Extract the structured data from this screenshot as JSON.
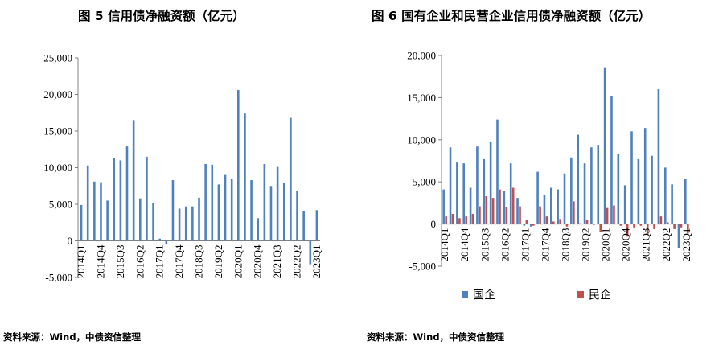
{
  "chart_data": [
    {
      "type": "bar",
      "title": "图 5  信用债净融资额（亿元）",
      "source": "资料来源：Wind，中债资信整理",
      "ylim": [
        -5000,
        25000
      ],
      "yticks": [
        -5000,
        0,
        5000,
        10000,
        15000,
        20000,
        25000
      ],
      "ytick_labels": [
        "-5,000",
        "0",
        "5,000",
        "10,000",
        "15,000",
        "20,000",
        "25,000"
      ],
      "categories": [
        "2014Q1",
        "2014Q2",
        "2014Q3",
        "2014Q4",
        "2015Q1",
        "2015Q2",
        "2015Q3",
        "2015Q4",
        "2016Q1",
        "2016Q2",
        "2016Q3",
        "2016Q4",
        "2017Q1",
        "2017Q2",
        "2017Q3",
        "2017Q4",
        "2018Q1",
        "2018Q2",
        "2018Q3",
        "2018Q4",
        "2019Q1",
        "2019Q2",
        "2019Q3",
        "2019Q4",
        "2020Q1",
        "2020Q2",
        "2020Q3",
        "2020Q4",
        "2021Q1",
        "2021Q2",
        "2021Q3",
        "2021Q4",
        "2022Q1",
        "2022Q2",
        "2022Q3",
        "2022Q4",
        "2023Q1"
      ],
      "xtick_labels": [
        "2014Q1",
        "",
        "",
        "2014Q4",
        "",
        "",
        "2015Q3",
        "",
        "",
        "2016Q2",
        "",
        "",
        "2017Q1",
        "",
        "",
        "2017Q4",
        "",
        "",
        "2018Q3",
        "",
        "",
        "2019Q2",
        "",
        "",
        "2020Q1",
        "",
        "",
        "2020Q4",
        "",
        "",
        "2021Q3",
        "",
        "",
        "2022Q2",
        "",
        "",
        "2023Q1"
      ],
      "series": [
        {
          "name": "信用债净融资额",
          "color": "#4F81BD",
          "values": [
            4900,
            10300,
            8100,
            8000,
            5500,
            11300,
            11000,
            12900,
            16500,
            5800,
            11500,
            5200,
            300,
            -500,
            8300,
            4400,
            4700,
            4700,
            5900,
            10500,
            10400,
            7700,
            9000,
            8500,
            20600,
            17400,
            8300,
            3100,
            10500,
            7500,
            10100,
            7900,
            16800,
            6800,
            4100,
            -3200,
            4200
          ]
        }
      ]
    },
    {
      "type": "bar",
      "title": "图 6  国有企业和民营企业信用债净融资额（亿元）",
      "source": "资料来源：Wind，中债资信整理",
      "ylim": [
        -5000,
        20000
      ],
      "yticks": [
        -5000,
        0,
        5000,
        10000,
        15000,
        20000
      ],
      "ytick_labels": [
        "-5,000",
        "0",
        "5,000",
        "10,000",
        "15,000",
        "20,000"
      ],
      "categories": [
        "2014Q1",
        "2014Q2",
        "2014Q3",
        "2014Q4",
        "2015Q1",
        "2015Q2",
        "2015Q3",
        "2015Q4",
        "2016Q1",
        "2016Q2",
        "2016Q3",
        "2016Q4",
        "2017Q1",
        "2017Q2",
        "2017Q3",
        "2017Q4",
        "2018Q1",
        "2018Q2",
        "2018Q3",
        "2018Q4",
        "2019Q1",
        "2019Q2",
        "2019Q3",
        "2019Q4",
        "2020Q1",
        "2020Q2",
        "2020Q3",
        "2020Q4",
        "2021Q1",
        "2021Q2",
        "2021Q3",
        "2021Q4",
        "2022Q1",
        "2022Q2",
        "2022Q3",
        "2022Q4",
        "2023Q1"
      ],
      "xtick_labels": [
        "2014Q1",
        "",
        "",
        "2014Q4",
        "",
        "",
        "2015Q3",
        "",
        "",
        "2016Q2",
        "",
        "",
        "2017Q1",
        "",
        "",
        "2017Q4",
        "",
        "",
        "2018Q3",
        "",
        "",
        "2019Q2",
        "",
        "",
        "2020Q1",
        "",
        "",
        "2020Q4",
        "",
        "",
        "2021Q3",
        "",
        "",
        "2022Q2",
        "",
        "",
        "2023Q1"
      ],
      "legend": [
        "国企",
        "民企"
      ],
      "series": [
        {
          "name": "国企",
          "color": "#4F81BD",
          "values": [
            4100,
            9100,
            7300,
            7200,
            4300,
            9200,
            7700,
            9800,
            12400,
            3900,
            7200,
            3100,
            -200,
            -300,
            6200,
            3500,
            4300,
            4100,
            6000,
            7900,
            10600,
            7200,
            9100,
            9400,
            18600,
            15200,
            8300,
            4600,
            11000,
            7700,
            11400,
            8100,
            16000,
            6700,
            4700,
            -2900,
            5400
          ]
        },
        {
          "name": "民企",
          "color": "#C0504D",
          "values": [
            900,
            1200,
            700,
            900,
            1200,
            2100,
            3300,
            3100,
            4100,
            2000,
            4300,
            2100,
            500,
            -200,
            2100,
            900,
            300,
            600,
            -300,
            2700,
            100,
            500,
            -100,
            -900,
            1900,
            2200,
            -200,
            -1500,
            -400,
            -200,
            -1300,
            -600,
            900,
            200,
            -600,
            -400,
            -1100
          ]
        }
      ]
    }
  ]
}
